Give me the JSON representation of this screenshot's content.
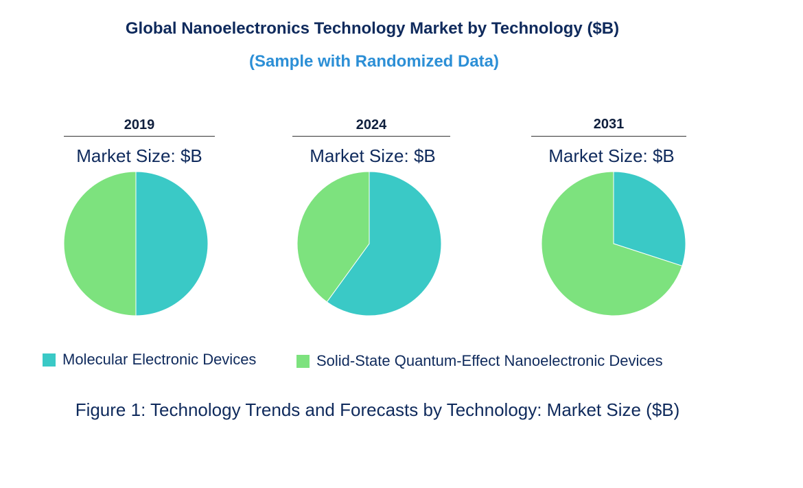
{
  "chart_data": {
    "type": "pie",
    "title": "Global Nanoelectronics Technology Market by  Technology ($B)",
    "subtitle": "(Sample with Randomized Data)",
    "caption": "Figure 1: Technology Trends and Forecasts by Technology: Market Size ($B)",
    "series_names": [
      "Molecular Electronic Devices",
      "Solid-State Quantum-Effect Nanoelectronic Devices"
    ],
    "colors": [
      "#3ac9c6",
      "#7de27e"
    ],
    "pies": [
      {
        "year": "2019",
        "label": "Market Size: $B",
        "values": [
          50,
          50
        ]
      },
      {
        "year": "2024",
        "label": "Market Size: $B",
        "values": [
          60,
          40
        ]
      },
      {
        "year": "2031",
        "label": "Market Size: $B",
        "values": [
          30,
          70
        ]
      }
    ]
  }
}
